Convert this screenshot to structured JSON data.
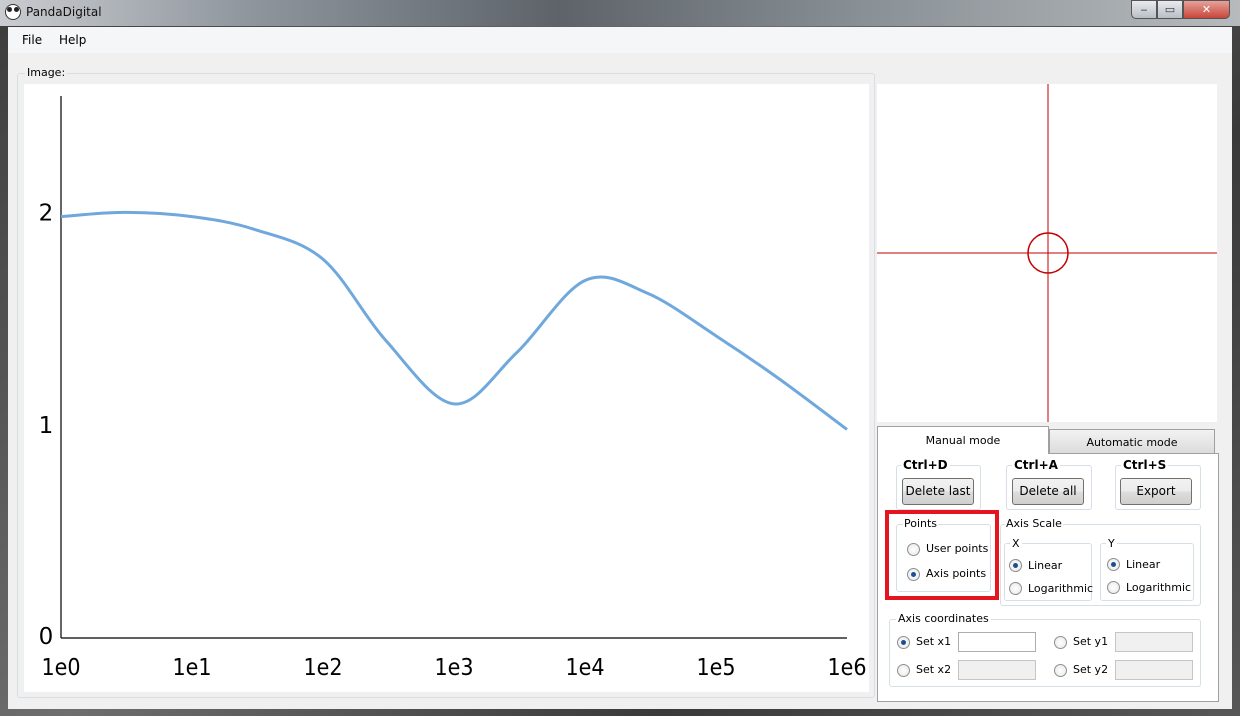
{
  "window": {
    "title": "PandaDigital",
    "min_glyph": "‒",
    "max_glyph": "▭",
    "close_glyph": "✕"
  },
  "menu": {
    "file": "File",
    "help": "Help"
  },
  "image_group": {
    "label": "Image:"
  },
  "chart_data": {
    "type": "line",
    "xscale": "log",
    "x_ticks": [
      "1e0",
      "1e1",
      "1e2",
      "1e3",
      "1e4",
      "1e5",
      "1e6"
    ],
    "y_ticks": [
      "0",
      "1",
      "2"
    ],
    "xlim": [
      1,
      1000000
    ],
    "ylim": [
      0,
      2.5
    ],
    "series": [
      {
        "color": "#6fa8dc",
        "x": [
          1,
          3,
          10,
          30,
          100,
          300,
          1000,
          3000,
          10000,
          30000,
          100000,
          300000,
          1000000
        ],
        "y": [
          1.98,
          2.0,
          1.98,
          1.92,
          1.78,
          1.4,
          1.1,
          1.34,
          1.68,
          1.62,
          1.42,
          1.22,
          0.98
        ]
      }
    ]
  },
  "zoom": {
    "crosshair_color": "#c00000"
  },
  "tabs": {
    "manual": "Manual mode",
    "automatic": "Automatic mode"
  },
  "actions": {
    "delete_last": {
      "shortcut": "Ctrl+D",
      "label": "Delete last"
    },
    "delete_all": {
      "shortcut": "Ctrl+A",
      "label": "Delete all"
    },
    "export": {
      "shortcut": "Ctrl+S",
      "label": "Export"
    }
  },
  "points": {
    "label": "Points",
    "user": "User points",
    "axis": "Axis points",
    "selected": "axis"
  },
  "axis_scale": {
    "label": "Axis Scale",
    "x": {
      "label": "X",
      "linear": "Linear",
      "log": "Logarithmic",
      "selected": "linear"
    },
    "y": {
      "label": "Y",
      "linear": "Linear",
      "log": "Logarithmic",
      "selected": "linear"
    }
  },
  "axis_coords": {
    "label": "Axis coordinates",
    "set_x1": "Set x1",
    "set_x2": "Set x2",
    "set_y1": "Set y1",
    "set_y2": "Set y2",
    "selected": "x1",
    "x1_value": "",
    "x2_value": "",
    "y1_value": "",
    "y2_value": ""
  },
  "highlight_color": "#e4151f"
}
